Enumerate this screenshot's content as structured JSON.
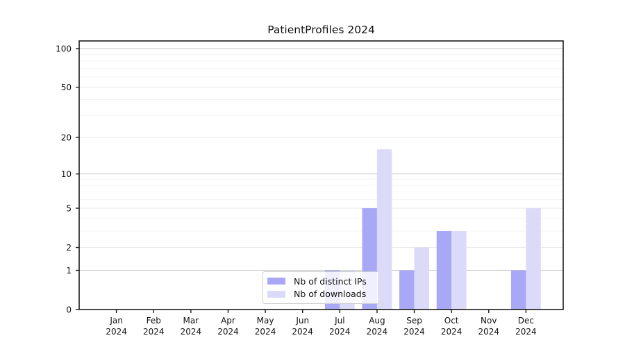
{
  "title": "PatientProfiles 2024",
  "colors": {
    "bar_distinct_ips": "#a8a8f6",
    "bar_downloads": "#dbdbf9",
    "grid_strong": "#c9c9c9",
    "grid_mid": "#e9e9ec",
    "grid_minor": "#f4f4f6",
    "axis": "#1a1a1a",
    "text": "#111111",
    "background": "#ffffff"
  },
  "legend": {
    "items": [
      {
        "label": "Nb of distinct IPs",
        "color": "#a8a8f6"
      },
      {
        "label": "Nb of downloads",
        "color": "#dbdbf9"
      }
    ],
    "position": "lower center-left, inside plot"
  },
  "chart_data": {
    "type": "bar",
    "title": "PatientProfiles 2024",
    "x_months": [
      "Jan",
      "Feb",
      "Mar",
      "Apr",
      "May",
      "Jun",
      "Jul",
      "Aug",
      "Sep",
      "Oct",
      "Nov",
      "Dec"
    ],
    "x_year": "2024",
    "series": [
      {
        "name": "Nb of distinct IPs",
        "color": "#a8a8f6",
        "values": [
          0,
          0,
          0,
          0,
          0,
          0,
          1,
          5,
          1,
          3,
          0,
          1
        ]
      },
      {
        "name": "Nb of downloads",
        "color": "#dbdbf9",
        "values": [
          0,
          0,
          0,
          0,
          0,
          0,
          1,
          16,
          2,
          3,
          0,
          5
        ]
      }
    ],
    "xlabel": "",
    "ylabel": "",
    "ylim": [
      0,
      100
    ],
    "y_scale": "log10(1+y)",
    "y_major_ticks": [
      0,
      1,
      2,
      5,
      10,
      20,
      50,
      100
    ],
    "y_strong_gridlines": [
      1,
      10,
      100
    ],
    "y_minor_gridlines": [
      3,
      4,
      6,
      7,
      8,
      9,
      30,
      40,
      60,
      70,
      80,
      90
    ],
    "grid": true,
    "legend_entries": [
      "Nb of distinct IPs",
      "Nb of downloads"
    ]
  }
}
